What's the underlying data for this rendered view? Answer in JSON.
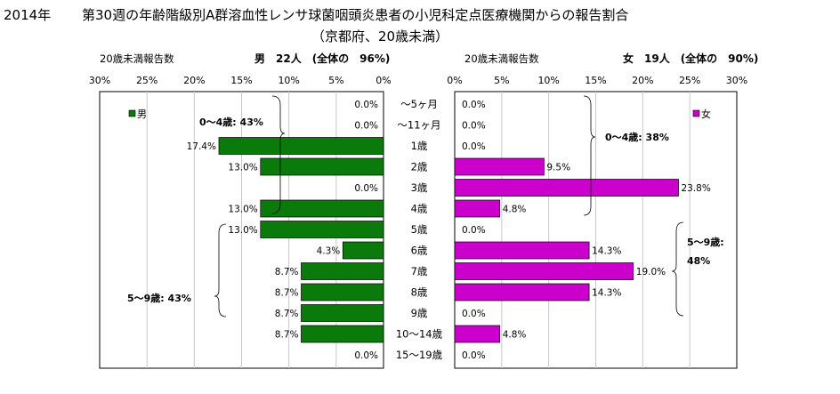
{
  "title": {
    "year": "2014年",
    "main": "第30週の年齢階級別A群溶血性レンサ球菌咽頭炎患者の小児科定点医療機関からの報告割合",
    "sub": "（京都府、20歳未満）"
  },
  "chart_data": {
    "type": "bar",
    "orientation": "horizontal",
    "categories": [
      "～5ヶ月",
      "～11ヶ月",
      "1歳",
      "2歳",
      "3歳",
      "4歳",
      "5歳",
      "6歳",
      "7歳",
      "8歳",
      "9歳",
      "10～14歳",
      "15～19歳"
    ],
    "xlim": [
      0,
      30
    ],
    "ticks": [
      0,
      5,
      10,
      15,
      20,
      25,
      30
    ],
    "tick_labels": [
      "0%",
      "5%",
      "10%",
      "15%",
      "20%",
      "25%",
      "30%"
    ],
    "grid": true,
    "male": {
      "axis_header": "20歳未満報告数",
      "summary": "男　22人　(全体の　96%)",
      "legend": "男",
      "color": "#0a7a0a",
      "values": [
        0.0,
        0.0,
        17.4,
        13.0,
        0.0,
        13.0,
        13.0,
        4.3,
        8.7,
        8.7,
        8.7,
        8.7,
        0.0
      ],
      "labels": [
        "0.0%",
        "0.0%",
        "17.4%",
        "13.0%",
        "0.0%",
        "13.0%",
        "13.0%",
        "4.3%",
        "8.7%",
        "8.7%",
        "8.7%",
        "8.7%",
        "0.0%"
      ],
      "groups": [
        {
          "label": "0～4歳: 43%",
          "from": 0,
          "to": 5
        },
        {
          "label": "5～9歳: 43%",
          "from": 6,
          "to": 10
        }
      ]
    },
    "female": {
      "axis_header": "20歳未満報告数",
      "summary": "女　19人　(全体の　90%)",
      "legend": "女",
      "color": "#cc00cc",
      "values": [
        0.0,
        0.0,
        0.0,
        9.5,
        23.8,
        4.8,
        0.0,
        14.3,
        19.0,
        14.3,
        0.0,
        4.8,
        0.0
      ],
      "labels": [
        "0.0%",
        "0.0%",
        "0.0%",
        "9.5%",
        "23.8%",
        "4.8%",
        "0.0%",
        "14.3%",
        "19.0%",
        "14.3%",
        "0.0%",
        "4.8%",
        "0.0%"
      ],
      "groups": [
        {
          "label": "0～4歳: 38%",
          "from": 0,
          "to": 5
        },
        {
          "label": "5～9歳: 48%",
          "label_line1": "5～9歳:",
          "label_line2": "48%",
          "from": 6,
          "to": 10
        }
      ]
    }
  }
}
